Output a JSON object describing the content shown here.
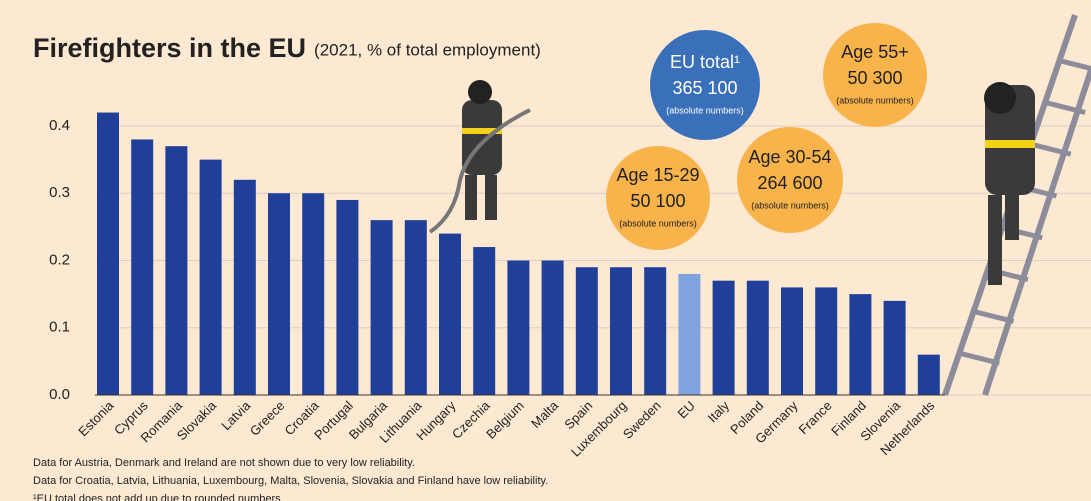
{
  "chart_data": {
    "type": "bar",
    "title": "Firefighters in the EU",
    "subtitle": "(2021, % of total employment)",
    "categories": [
      "Estonia",
      "Cyprus",
      "Romania",
      "Slovakia",
      "Latvia",
      "Greece",
      "Croatia",
      "Portugal",
      "Bulgaria",
      "Lithuania",
      "Hungary",
      "Czechia",
      "Belgium",
      "Malta",
      "Spain",
      "Luxembourg",
      "Sweden",
      "EU",
      "Italy",
      "Poland",
      "Germany",
      "France",
      "Finland",
      "Slovenia",
      "Netherlands"
    ],
    "values": [
      0.42,
      0.38,
      0.37,
      0.35,
      0.32,
      0.3,
      0.3,
      0.29,
      0.26,
      0.26,
      0.24,
      0.22,
      0.2,
      0.2,
      0.19,
      0.19,
      0.19,
      0.18,
      0.17,
      0.17,
      0.16,
      0.16,
      0.15,
      0.14,
      0.06
    ],
    "colors": [
      "#1f3f98",
      "#1f3f98",
      "#1f3f98",
      "#1f3f98",
      "#1f3f98",
      "#1f3f98",
      "#1f3f98",
      "#1f3f98",
      "#1f3f98",
      "#1f3f98",
      "#1f3f98",
      "#1f3f98",
      "#1f3f98",
      "#1f3f98",
      "#1f3f98",
      "#1f3f98",
      "#1f3f98",
      "#7fa3dc",
      "#1f3f98",
      "#1f3f98",
      "#1f3f98",
      "#1f3f98",
      "#1f3f98",
      "#1f3f98",
      "#1f3f98"
    ],
    "ylim": [
      0,
      0.4
    ],
    "yticks": [
      {
        "value": 0,
        "label": "0.0"
      },
      0.1,
      0.2,
      0.3,
      0.4
    ],
    "grid": true,
    "annotations": [
      {
        "title": "EU total¹",
        "number": "365 100",
        "note": "(absolute numbers)",
        "color": "#3a6fb9"
      },
      {
        "title": "Age 15-29",
        "number": "50 100",
        "note": "(absolute numbers)",
        "color": "#f8b34b"
      },
      {
        "title": "Age 30-54",
        "number": "264 600",
        "note": "(absolute numbers)",
        "color": "#f8b34b"
      },
      {
        "title": "Age 55+",
        "number": "50 300",
        "note": "(absolute numbers)",
        "color": "#f8b34b"
      }
    ],
    "footnotes": [
      "Data for Austria, Denmark and Ireland are not shown due to very low reliability.",
      "Data for Croatia, Latvia, Lithuania, Luxembourg, Malta, Slovenia, Slovakia and Finland have low reliability.",
      "¹EU total does not add up due to rounded numbers"
    ]
  }
}
